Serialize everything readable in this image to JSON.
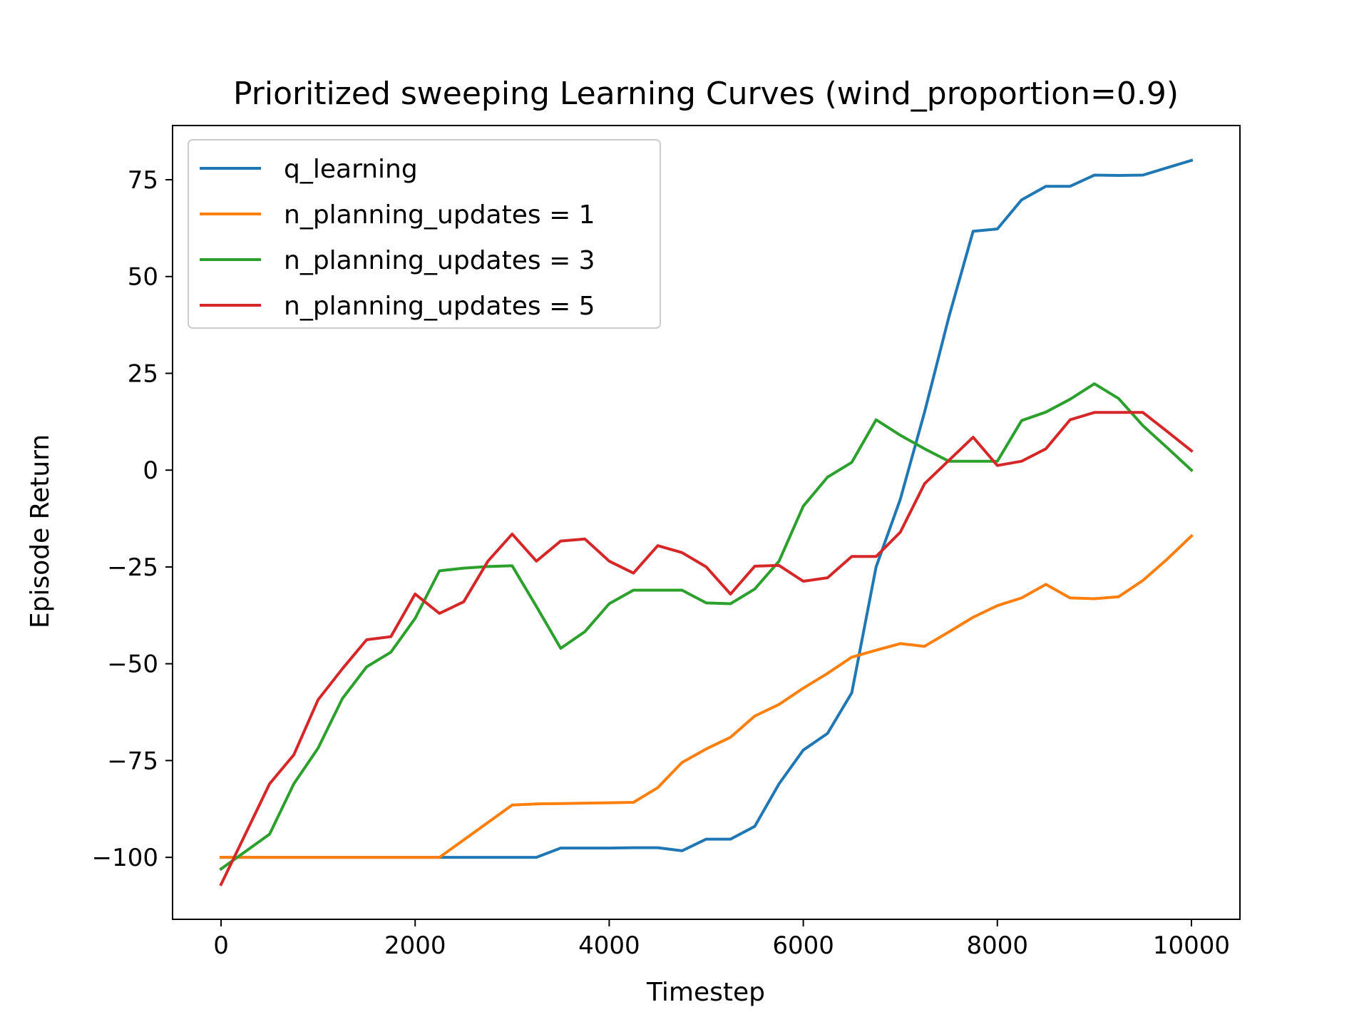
{
  "chart_data": {
    "type": "line",
    "title": "Prioritized sweeping Learning Curves (wind_proportion=0.9)",
    "xlabel": "Timestep",
    "ylabel": "Episode Return",
    "xlim": [
      -500,
      10500
    ],
    "ylim": [
      -116,
      89
    ],
    "xticks": [
      0,
      2000,
      4000,
      6000,
      8000,
      10000
    ],
    "xtick_labels": [
      "0",
      "2000",
      "4000",
      "6000",
      "8000",
      "10000"
    ],
    "yticks": [
      75,
      50,
      25,
      0,
      -25,
      -50,
      -75,
      -100
    ],
    "ytick_labels": [
      "75",
      "50",
      "25",
      "0",
      "−25",
      "−50",
      "−75",
      "−100"
    ],
    "grid": false,
    "legend_position": "upper-left",
    "x": [
      0,
      250,
      500,
      750,
      1000,
      1250,
      1500,
      1750,
      2000,
      2250,
      2500,
      2750,
      3000,
      3250,
      3500,
      3750,
      4000,
      4250,
      4500,
      4750,
      5000,
      5250,
      5500,
      5750,
      6000,
      6250,
      6500,
      6750,
      7000,
      7250,
      7500,
      7750,
      8000,
      8250,
      8500,
      8750,
      9000,
      9250,
      9500,
      9750,
      10000
    ],
    "series": [
      {
        "name": "q_learning",
        "color": "#1f77b4",
        "values": [
          -100,
          -100,
          -100,
          -100,
          -100,
          -100,
          -100,
          -100,
          -100,
          -100,
          -100,
          -100,
          -100,
          -100,
          -97.6,
          -97.6,
          -97.6,
          -97.5,
          -97.5,
          -98.3,
          -95.3,
          -95.3,
          -92.0,
          -81.0,
          -72.3,
          -68.0,
          -57.5,
          -25.0,
          -7.5,
          15.0,
          39.5,
          61.7,
          62.3,
          69.8,
          73.3,
          73.3,
          76.2,
          76.1,
          76.2,
          78.1,
          80.0
        ]
      },
      {
        "name": "n_planning_updates = 1",
        "color": "#ff7f0e",
        "values": [
          -100,
          -100,
          -100,
          -100,
          -100,
          -100,
          -100,
          -100,
          -100,
          -100,
          -95.5,
          -91.0,
          -86.5,
          -86.2,
          -86.1,
          -86.0,
          -85.9,
          -85.8,
          -82.0,
          -75.5,
          -72.0,
          -69.0,
          -63.5,
          -60.5,
          -56.3,
          -52.5,
          -48.3,
          -46.5,
          -44.8,
          -45.5,
          -41.8,
          -38.0,
          -35.0,
          -33.0,
          -29.5,
          -33.0,
          -33.2,
          -32.7,
          -28.5,
          -23.0,
          -17.0
        ]
      },
      {
        "name": "n_planning_updates = 3",
        "color": "#2ca02c",
        "values": [
          -103.0,
          -98.5,
          -94.0,
          -81.0,
          -71.8,
          -59.0,
          -50.8,
          -47.0,
          -38.3,
          -26.0,
          -25.3,
          -24.9,
          -24.7,
          -35.2,
          -46.0,
          -41.7,
          -34.5,
          -31.0,
          -31.0,
          -31.0,
          -34.3,
          -34.5,
          -30.7,
          -23.5,
          -9.3,
          -1.8,
          2.0,
          13.0,
          9.0,
          5.5,
          2.3,
          2.3,
          2.3,
          12.8,
          15.0,
          18.3,
          22.3,
          18.5,
          11.5,
          5.8,
          0.0
        ]
      },
      {
        "name": "n_planning_updates = 5",
        "color": "#d62728",
        "values": [
          -107.0,
          -94.0,
          -81.0,
          -73.5,
          -59.3,
          -51.3,
          -43.8,
          -43.0,
          -32.0,
          -37.0,
          -34.0,
          -23.5,
          -16.5,
          -23.5,
          -18.3,
          -17.8,
          -23.5,
          -26.6,
          -19.5,
          -21.3,
          -25.0,
          -32.0,
          -24.8,
          -24.6,
          -28.7,
          -27.8,
          -22.3,
          -22.3,
          -16.0,
          -3.5,
          2.5,
          8.5,
          1.2,
          2.3,
          5.5,
          13.0,
          14.9,
          14.9,
          14.9,
          10.0,
          5.0
        ]
      }
    ]
  }
}
